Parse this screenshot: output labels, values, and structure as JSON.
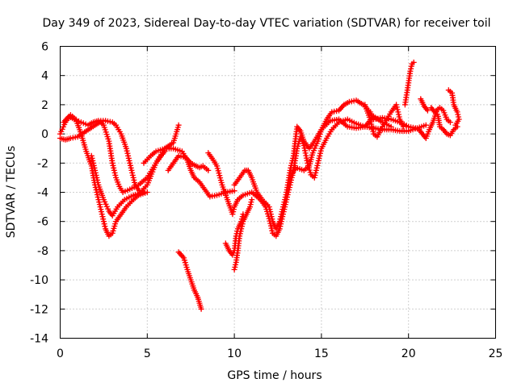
{
  "chart_data": {
    "type": "scatter",
    "title": "Day 349 of 2023, Sidereal Day-to-day VTEC variation (SDTVAR) for receiver toil",
    "xlabel": "GPS time / hours",
    "ylabel": "SDTVAR / TECUs",
    "xlim": [
      0,
      25
    ],
    "ylim": [
      -14,
      6
    ],
    "xticks": [
      "0",
      "5",
      "10",
      "15",
      "20",
      "25"
    ],
    "yticks": [
      "6",
      "4",
      "2",
      "0",
      "-2",
      "-4",
      "-6",
      "-8",
      "-10",
      "-12",
      "-14"
    ],
    "grid": true,
    "marker": "plus",
    "color": "#ff0000",
    "series": [
      {
        "values": [
          [
            0.0,
            -0.3
          ],
          [
            0.3,
            -0.4
          ],
          [
            0.6,
            -0.3
          ],
          [
            1.0,
            -0.2
          ],
          [
            1.5,
            0.2
          ],
          [
            2.0,
            0.6
          ],
          [
            2.3,
            0.8
          ],
          [
            2.5,
            0.6
          ],
          [
            2.8,
            -0.5
          ],
          [
            3.0,
            -2.0
          ],
          [
            3.2,
            -3.0
          ],
          [
            3.4,
            -3.6
          ],
          [
            3.6,
            -4.0
          ],
          [
            4.0,
            -3.8
          ],
          [
            4.5,
            -3.5
          ],
          [
            5.0,
            -3.0
          ],
          [
            5.5,
            -2.0
          ],
          [
            5.8,
            -1.5
          ],
          [
            6.0,
            -1.2
          ]
        ]
      },
      {
        "values": [
          [
            0.2,
            0.8
          ],
          [
            0.5,
            1.2
          ],
          [
            0.8,
            1.0
          ],
          [
            1.2,
            0.8
          ],
          [
            1.6,
            0.6
          ],
          [
            1.9,
            0.8
          ],
          [
            2.2,
            0.9
          ],
          [
            2.6,
            0.9
          ],
          [
            3.0,
            0.8
          ],
          [
            3.2,
            0.6
          ],
          [
            3.5,
            0.0
          ],
          [
            3.8,
            -1.0
          ],
          [
            4.0,
            -2.0
          ],
          [
            4.3,
            -3.5
          ],
          [
            4.6,
            -4.0
          ],
          [
            5.0,
            -3.5
          ],
          [
            5.5,
            -2.0
          ],
          [
            6.0,
            -1.0
          ],
          [
            6.5,
            -0.6
          ],
          [
            6.8,
            0.6
          ]
        ]
      },
      {
        "values": [
          [
            0.0,
            0.0
          ],
          [
            0.3,
            0.8
          ],
          [
            0.6,
            1.3
          ],
          [
            0.9,
            1.0
          ],
          [
            1.2,
            0.0
          ],
          [
            1.5,
            -1.2
          ],
          [
            1.8,
            -2.2
          ],
          [
            2.0,
            -3.5
          ],
          [
            2.2,
            -4.5
          ],
          [
            2.4,
            -5.5
          ],
          [
            2.6,
            -6.5
          ],
          [
            2.8,
            -7.0
          ],
          [
            3.0,
            -6.8
          ],
          [
            3.2,
            -6.0
          ],
          [
            3.5,
            -5.5
          ],
          [
            3.8,
            -5.0
          ],
          [
            4.2,
            -4.5
          ],
          [
            4.5,
            -4.2
          ],
          [
            5.0,
            -4.0
          ]
        ]
      },
      {
        "values": [
          [
            1.8,
            -1.5
          ],
          [
            2.0,
            -2.5
          ],
          [
            2.2,
            -3.5
          ],
          [
            2.5,
            -4.5
          ],
          [
            2.8,
            -5.3
          ],
          [
            3.0,
            -5.6
          ],
          [
            3.3,
            -5.0
          ],
          [
            3.7,
            -4.5
          ],
          [
            4.2,
            -4.2
          ],
          [
            4.8,
            -4.0
          ]
        ]
      },
      {
        "values": [
          [
            4.8,
            -2.0
          ],
          [
            5.2,
            -1.5
          ],
          [
            5.5,
            -1.2
          ],
          [
            6.0,
            -1.0
          ],
          [
            6.5,
            -1.0
          ],
          [
            7.0,
            -1.2
          ],
          [
            7.3,
            -1.8
          ],
          [
            7.5,
            -2.5
          ],
          [
            7.7,
            -3.0
          ],
          [
            8.0,
            -3.3
          ],
          [
            8.3,
            -3.8
          ],
          [
            8.6,
            -4.3
          ],
          [
            9.0,
            -4.2
          ],
          [
            9.5,
            -4.0
          ],
          [
            10.0,
            -3.9
          ]
        ]
      },
      {
        "values": [
          [
            6.2,
            -2.5
          ],
          [
            6.5,
            -2.0
          ],
          [
            6.8,
            -1.5
          ],
          [
            7.2,
            -1.6
          ],
          [
            7.5,
            -2.0
          ],
          [
            7.8,
            -2.2
          ],
          [
            8.0,
            -2.3
          ],
          [
            8.2,
            -2.2
          ],
          [
            8.5,
            -2.5
          ]
        ]
      },
      {
        "values": [
          [
            8.5,
            -1.3
          ],
          [
            8.8,
            -1.8
          ],
          [
            9.0,
            -2.2
          ],
          [
            9.3,
            -3.5
          ],
          [
            9.6,
            -4.5
          ],
          [
            9.9,
            -5.5
          ],
          [
            10.0,
            -5.0
          ],
          [
            10.2,
            -4.5
          ],
          [
            10.5,
            -4.2
          ],
          [
            11.0,
            -4.0
          ],
          [
            11.5,
            -4.5
          ],
          [
            11.8,
            -4.8
          ]
        ]
      },
      {
        "values": [
          [
            10.0,
            -3.5
          ],
          [
            10.3,
            -3.0
          ],
          [
            10.6,
            -2.5
          ],
          [
            10.8,
            -2.5
          ],
          [
            11.0,
            -3.0
          ],
          [
            11.3,
            -4.0
          ],
          [
            11.6,
            -4.5
          ],
          [
            12.0,
            -5.0
          ],
          [
            12.2,
            -6.0
          ],
          [
            12.4,
            -6.5
          ],
          [
            12.6,
            -6.0
          ],
          [
            12.8,
            -5.0
          ],
          [
            13.0,
            -4.0
          ],
          [
            13.2,
            -3.0
          ],
          [
            13.5,
            -2.3
          ],
          [
            14.0,
            -2.5
          ],
          [
            14.3,
            -2.2
          ],
          [
            14.5,
            -1.3
          ],
          [
            14.8,
            -0.5
          ],
          [
            15.0,
            0.3
          ],
          [
            15.3,
            1.0
          ],
          [
            15.6,
            1.5
          ],
          [
            16.0,
            1.6
          ],
          [
            16.3,
            2.0
          ],
          [
            16.6,
            2.2
          ],
          [
            17.0,
            2.3
          ],
          [
            17.4,
            2.0
          ],
          [
            17.8,
            1.5
          ],
          [
            18.0,
            1.0
          ],
          [
            18.5,
            1.1
          ],
          [
            19.0,
            1.0
          ],
          [
            19.5,
            0.8
          ],
          [
            20.0,
            0.5
          ]
        ]
      },
      {
        "values": [
          [
            9.5,
            -7.5
          ],
          [
            9.7,
            -8.0
          ],
          [
            9.9,
            -8.3
          ],
          [
            10.0,
            -8.0
          ],
          [
            10.1,
            -7.0
          ],
          [
            10.2,
            -6.5
          ],
          [
            10.4,
            -6.0
          ],
          [
            10.5,
            -5.5
          ]
        ]
      },
      {
        "values": [
          [
            10.0,
            -9.3
          ],
          [
            10.1,
            -8.8
          ],
          [
            10.2,
            -8.0
          ],
          [
            10.3,
            -7.0
          ],
          [
            10.5,
            -6.0
          ],
          [
            10.7,
            -5.5
          ],
          [
            10.9,
            -5.0
          ],
          [
            11.0,
            -4.5
          ]
        ]
      },
      {
        "values": [
          [
            6.8,
            -8.1
          ],
          [
            7.1,
            -8.5
          ],
          [
            7.3,
            -9.3
          ],
          [
            7.5,
            -10.0
          ],
          [
            7.7,
            -10.7
          ],
          [
            7.9,
            -11.2
          ],
          [
            8.0,
            -11.6
          ],
          [
            8.1,
            -12.0
          ]
        ]
      },
      {
        "values": [
          [
            11.5,
            -4.5
          ],
          [
            11.8,
            -5.0
          ],
          [
            12.0,
            -5.8
          ],
          [
            12.2,
            -6.8
          ],
          [
            12.4,
            -7.0
          ],
          [
            12.6,
            -6.5
          ],
          [
            12.8,
            -5.5
          ],
          [
            13.0,
            -4.5
          ],
          [
            13.2,
            -3.5
          ],
          [
            13.4,
            -2.5
          ],
          [
            13.6,
            -1.0
          ],
          [
            13.8,
            -0.2
          ],
          [
            14.0,
            -0.8
          ],
          [
            14.2,
            -2.0
          ],
          [
            14.4,
            -2.8
          ],
          [
            14.6,
            -3.0
          ],
          [
            14.8,
            -2.0
          ],
          [
            15.0,
            -1.0
          ],
          [
            15.3,
            -0.3
          ],
          [
            15.6,
            0.3
          ],
          [
            16.0,
            0.8
          ],
          [
            16.5,
            1.0
          ],
          [
            17.0,
            0.7
          ],
          [
            17.5,
            0.5
          ],
          [
            18.0,
            0.4
          ],
          [
            18.5,
            0.3
          ],
          [
            19.0,
            0.3
          ],
          [
            19.5,
            0.2
          ],
          [
            20.0,
            0.2
          ],
          [
            20.5,
            0.4
          ],
          [
            21.0,
            0.6
          ]
        ]
      },
      {
        "values": [
          [
            13.0,
            -4.0
          ],
          [
            13.2,
            -2.5
          ],
          [
            13.4,
            -1.5
          ],
          [
            13.6,
            0.5
          ],
          [
            13.8,
            0.2
          ],
          [
            14.0,
            -0.5
          ],
          [
            14.3,
            -1.0
          ],
          [
            14.6,
            -0.5
          ],
          [
            15.0,
            0.3
          ],
          [
            15.5,
            0.9
          ],
          [
            16.0,
            1.0
          ],
          [
            16.5,
            0.5
          ],
          [
            17.0,
            0.4
          ],
          [
            17.5,
            0.5
          ],
          [
            18.0,
            1.2
          ],
          [
            18.5,
            0.8
          ],
          [
            19.0,
            0.5
          ]
        ]
      },
      {
        "values": [
          [
            17.5,
            2.0
          ],
          [
            17.8,
            1.0
          ],
          [
            18.0,
            0.0
          ],
          [
            18.2,
            -0.2
          ],
          [
            18.5,
            0.5
          ],
          [
            19.0,
            1.5
          ],
          [
            19.3,
            2.0
          ],
          [
            19.5,
            1.0
          ],
          [
            19.7,
            0.5
          ]
        ]
      },
      {
        "values": [
          [
            19.8,
            2.0
          ],
          [
            20.0,
            3.5
          ],
          [
            20.1,
            4.3
          ],
          [
            20.2,
            4.8
          ],
          [
            20.3,
            4.9
          ]
        ]
      },
      {
        "values": [
          [
            19.5,
            0.8
          ],
          [
            20.0,
            0.5
          ],
          [
            20.4,
            0.4
          ],
          [
            20.6,
            0.3
          ],
          [
            20.8,
            0.0
          ],
          [
            21.0,
            -0.3
          ],
          [
            21.2,
            0.3
          ],
          [
            21.4,
            0.8
          ],
          [
            21.6,
            1.5
          ],
          [
            21.7,
            1.2
          ],
          [
            21.8,
            0.5
          ],
          [
            22.0,
            0.3
          ],
          [
            22.2,
            0.0
          ],
          [
            22.4,
            -0.1
          ],
          [
            22.6,
            0.3
          ],
          [
            22.8,
            0.5
          ]
        ]
      },
      {
        "values": [
          [
            20.7,
            2.4
          ],
          [
            20.9,
            1.9
          ],
          [
            21.1,
            1.6
          ]
        ]
      },
      {
        "values": [
          [
            21.3,
            1.8
          ],
          [
            21.5,
            1.5
          ],
          [
            21.8,
            1.8
          ],
          [
            22.0,
            1.6
          ],
          [
            22.2,
            1.0
          ],
          [
            22.4,
            0.8
          ]
        ]
      },
      {
        "values": [
          [
            22.3,
            3.0
          ],
          [
            22.5,
            2.8
          ],
          [
            22.6,
            2.0
          ],
          [
            22.8,
            1.5
          ],
          [
            22.9,
            1.0
          ],
          [
            22.7,
            0.6
          ]
        ]
      }
    ]
  }
}
